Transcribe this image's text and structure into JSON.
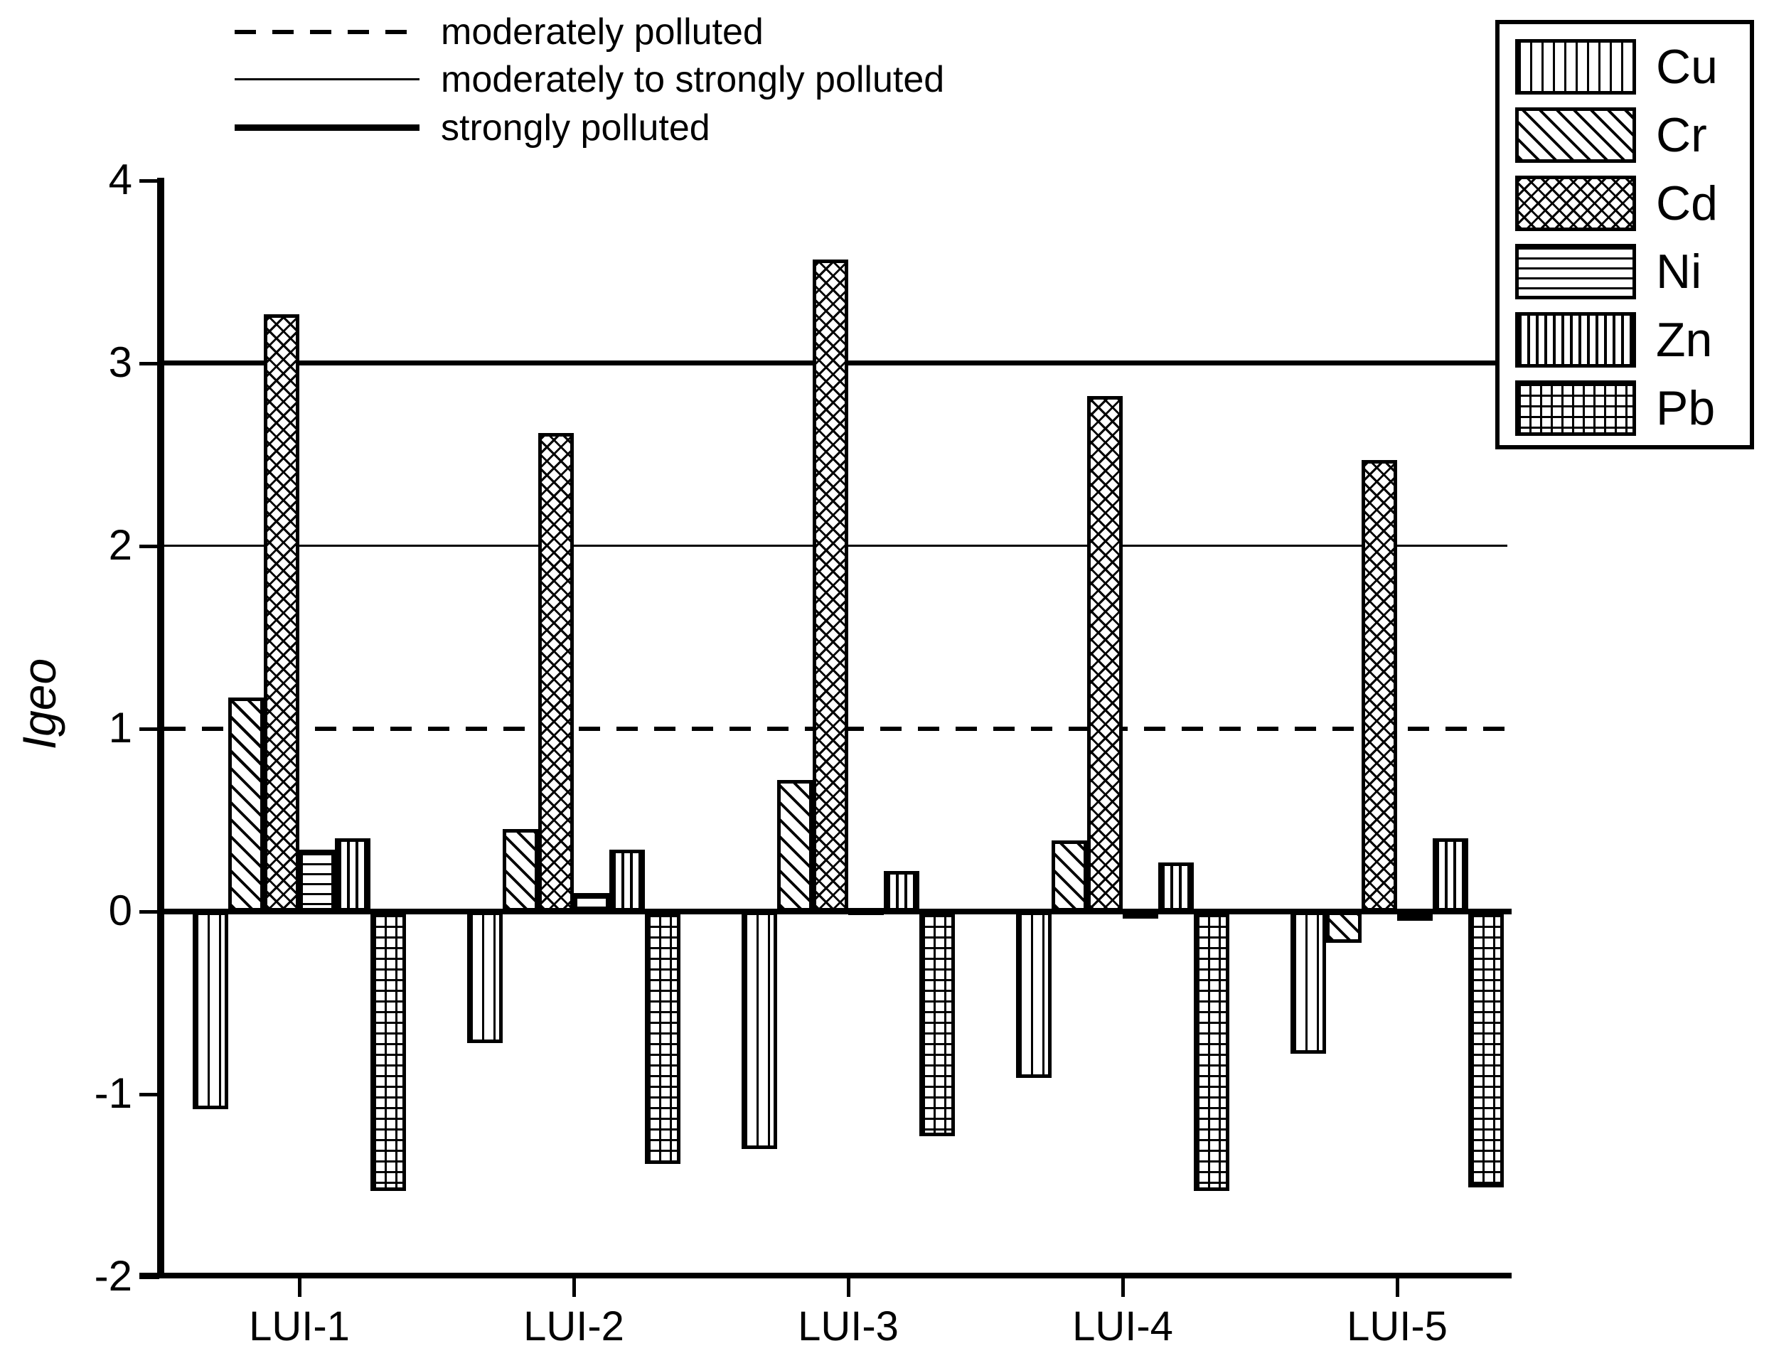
{
  "figure": {
    "background_color": "#ffffff",
    "ink_color": "#000000"
  },
  "chart_data": {
    "type": "bar",
    "title": "",
    "xlabel": "",
    "ylabel": "Igeo",
    "ylim": [
      -2,
      4
    ],
    "yticks": [
      4,
      3,
      2,
      1,
      0,
      -1,
      -2
    ],
    "grid": false,
    "legend_position": "top-right",
    "categories": [
      "LUI-1",
      "LUI-2",
      "LUI-3",
      "LUI-4",
      "LUI-5"
    ],
    "series": [
      {
        "name": "Cu",
        "pattern": "vertical-thin-lines",
        "values": [
          -1.08,
          -0.72,
          -1.3,
          -0.91,
          -0.78
        ]
      },
      {
        "name": "Cr",
        "pattern": "diagonal-lines",
        "values": [
          1.17,
          0.45,
          0.72,
          0.39,
          -0.17
        ]
      },
      {
        "name": "Cd",
        "pattern": "diamond-crosshatch",
        "values": [
          3.27,
          2.62,
          3.57,
          2.82,
          2.47
        ]
      },
      {
        "name": "Ni",
        "pattern": "horizontal-lines",
        "values": [
          0.34,
          0.1,
          0.02,
          -0.04,
          -0.05
        ]
      },
      {
        "name": "Zn",
        "pattern": "vertical-thick-lines",
        "values": [
          0.4,
          0.34,
          0.22,
          0.27,
          0.4
        ]
      },
      {
        "name": "Pb",
        "pattern": "grid-hatch",
        "values": [
          -1.53,
          -1.38,
          -1.23,
          -1.53,
          -1.51
        ]
      }
    ],
    "reference_lines": [
      {
        "value": 1,
        "style": "dashed",
        "label": "moderately polluted"
      },
      {
        "value": 2,
        "style": "thin",
        "label": "moderately to strongly polluted"
      },
      {
        "value": 3,
        "style": "thick",
        "label": "strongly polluted"
      }
    ]
  }
}
